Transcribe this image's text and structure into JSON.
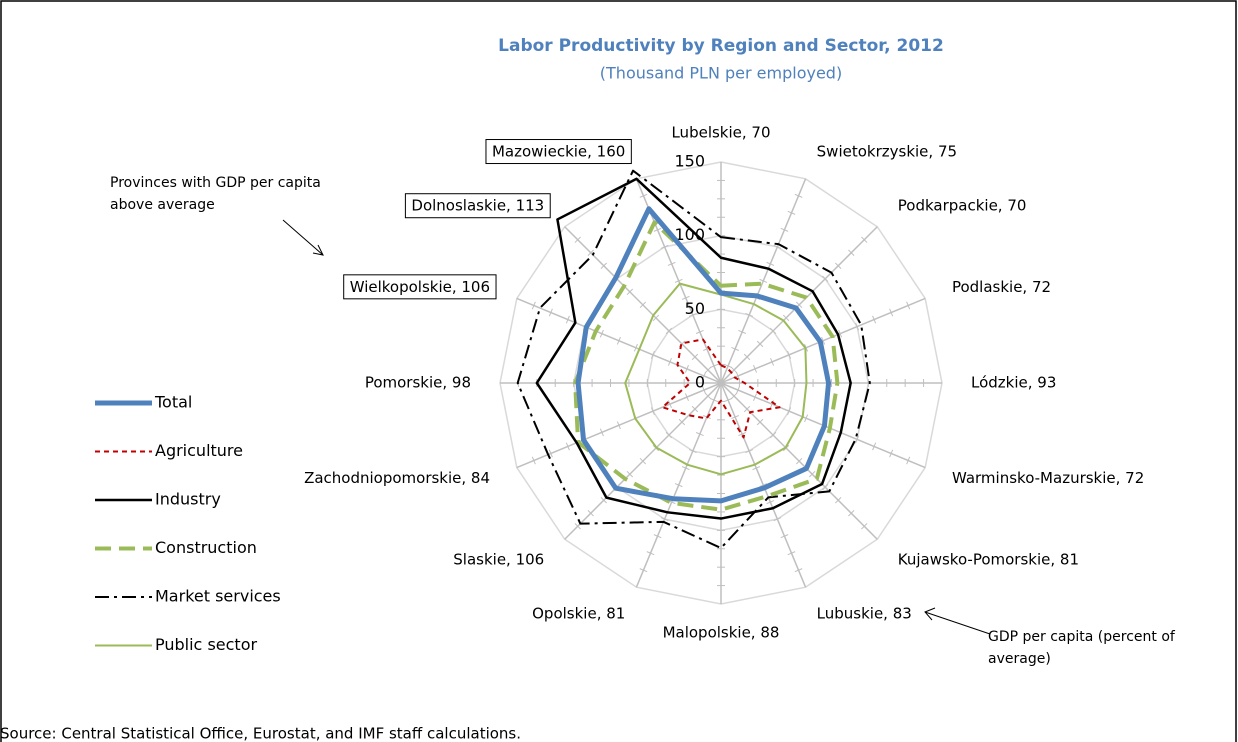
{
  "chart_data": {
    "type": "radar",
    "title": "Labor Productivity by Region and Sector, 2012",
    "subtitle": "(Thousand PLN per employed)",
    "categories": [
      "Lubelskie, 70",
      "Swietokrzyskie, 75",
      "Podkarpackie, 70",
      "Podlaskie, 72",
      "Lódzkie, 93",
      "Warminsko-Mazurskie, 72",
      "Kujawsko-Pomorskie, 81",
      "Lubuskie, 83",
      "Malopolskie, 88",
      "Opolskie, 81",
      "Slaskie, 106",
      "Zachodniopomorskie, 84",
      "Pomorskie, 98",
      "Wielkopolskie, 106",
      "Dolnoslaskie, 113",
      "Mazowieckie, 160"
    ],
    "series": [
      {
        "name": "Total",
        "color": "#4f81bd",
        "width": 5,
        "dash": "solid",
        "values": [
          61,
          64,
          72,
          73,
          73,
          76,
          82,
          77,
          80,
          85,
          101,
          101,
          97,
          99,
          101,
          128
        ]
      },
      {
        "name": "Agriculture",
        "color": "#c00000",
        "width": 2,
        "dash": "dashed",
        "values": [
          12,
          11,
          10,
          10,
          16,
          43,
          28,
          40,
          12,
          26,
          31,
          43,
          21,
          32,
          38,
          32
        ]
      },
      {
        "name": "Industry",
        "color": "#000000",
        "width": 2.5,
        "dash": "solid",
        "values": [
          85,
          84,
          88,
          86,
          88,
          88,
          97,
          92,
          92,
          95,
          110,
          106,
          125,
          107,
          157,
          150
        ]
      },
      {
        "name": "Construction",
        "color": "#9bbb59",
        "width": 4,
        "dash": "longdash",
        "values": [
          66,
          73,
          82,
          82,
          79,
          80,
          92,
          83,
          86,
          88,
          92,
          105,
          99,
          92,
          93,
          118
        ]
      },
      {
        "name": "Market services",
        "color": "#000000",
        "width": 2,
        "dash": "dashdot",
        "values": [
          99,
          102,
          106,
          103,
          101,
          99,
          104,
          84,
          112,
          102,
          135,
          127,
          138,
          133,
          123,
          156
        ]
      },
      {
        "name": "Public sector",
        "color": "#9bbb59",
        "width": 2,
        "dash": "solid",
        "values": [
          60,
          58,
          60,
          62,
          58,
          60,
          62,
          60,
          62,
          60,
          62,
          63,
          65,
          60,
          65,
          73
        ]
      }
    ],
    "ylim": [
      0,
      150
    ],
    "yticks": [
      0,
      50,
      100,
      150
    ],
    "grid": true,
    "annotations": [
      "Provinces with GDP per capita above average",
      "GDP per capita (percent of average)"
    ],
    "source": "Source: Central Statistical Office, Eurostat, and IMF staff calculations."
  }
}
